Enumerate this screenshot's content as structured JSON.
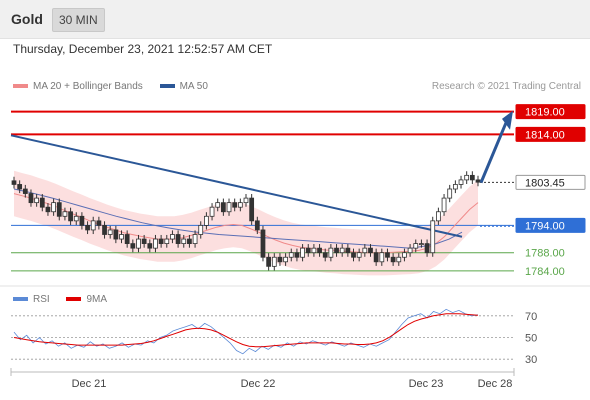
{
  "header": {
    "title": "Gold",
    "timeframe": "30 MIN"
  },
  "timestamp": "Thursday, December 23, 2021 12:52:57 AM CET",
  "copyright": "Research © 2021 Trading Central",
  "colors": {
    "resistance": "#e00000",
    "pivot": "#2f6fd6",
    "support": "#5aa64a",
    "trend": "#2b5797",
    "bollinger_fill": "#fcd9d9",
    "ma20": "#f08a8a",
    "ma50": "#5b6fb5",
    "candle_up": "#2e7d32",
    "candle_down": "#c62828",
    "rsi": "#5b8ad6",
    "rsi_ma": "#e00000"
  },
  "chart_data": [
    {
      "type": "candlestick",
      "name": "price",
      "legend": [
        {
          "label": "MA 20 + Bollinger Bands",
          "color": "#f08a8a"
        },
        {
          "label": "MA 50",
          "color": "#2b5797"
        }
      ],
      "ylim": [
        1782,
        1822
      ],
      "x_ticks": [
        "Dec 21",
        "Dec 22",
        "Dec 23",
        "Dec 28"
      ],
      "current_price": "1803.45",
      "levels": [
        {
          "label": "1819.00",
          "value": 1819.0,
          "kind": "resistance"
        },
        {
          "label": "1814.00",
          "value": 1814.0,
          "kind": "resistance"
        },
        {
          "label": "1803.45",
          "value": 1803.45,
          "kind": "last"
        },
        {
          "label": "1794.00",
          "value": 1794.0,
          "kind": "pivot"
        },
        {
          "label": "1788.00",
          "value": 1788.0,
          "kind": "support"
        },
        {
          "label": "1784.00",
          "value": 1784.0,
          "kind": "support"
        }
      ],
      "close_series": [
        1803,
        1802,
        1801,
        1799,
        1800,
        1798,
        1797,
        1799,
        1796,
        1797,
        1795,
        1796,
        1794,
        1793,
        1795,
        1794,
        1792,
        1793,
        1791,
        1792,
        1790,
        1789,
        1791,
        1790,
        1789,
        1791,
        1790,
        1791,
        1792,
        1790,
        1791,
        1790,
        1792,
        1794,
        1796,
        1798,
        1799,
        1797,
        1799,
        1798,
        1799,
        1800,
        1795,
        1793,
        1787,
        1785,
        1787,
        1786,
        1787,
        1788,
        1787,
        1789,
        1788,
        1789,
        1788,
        1787,
        1789,
        1788,
        1789,
        1788,
        1787,
        1788,
        1789,
        1788,
        1786,
        1788,
        1787,
        1786,
        1787,
        1788,
        1789,
        1790,
        1790,
        1788,
        1795,
        1797,
        1800,
        1802,
        1803,
        1804,
        1805,
        1804,
        1803.5
      ],
      "ma20": [
        1801,
        1800.5,
        1800,
        1799.4,
        1798.8,
        1798.1,
        1797.3,
        1796.5,
        1795.8,
        1795,
        1794.3,
        1793.6,
        1793,
        1792.4,
        1792,
        1791.6,
        1791.3,
        1791,
        1791,
        1791,
        1791.3,
        1791.8,
        1792.4,
        1793,
        1793.6,
        1794,
        1794.2,
        1794,
        1793.3,
        1792.5,
        1791.6,
        1790.8,
        1790.1,
        1789.6,
        1789.2,
        1789,
        1788.8,
        1788.6,
        1788.5,
        1788.3,
        1788.2,
        1788.1,
        1788,
        1788,
        1788,
        1788.1,
        1788.2,
        1788.3,
        1788.5,
        1789,
        1790,
        1791.5,
        1793.5,
        1795.5,
        1797.5,
        1799
      ],
      "ma50": [
        1802,
        1801.4,
        1800.7,
        1800,
        1799.2,
        1798.4,
        1797.6,
        1796.8,
        1796,
        1795.3,
        1794.6,
        1794,
        1793.5,
        1793,
        1792.6,
        1792.3,
        1792,
        1791.8,
        1791.6,
        1791.4,
        1791.2,
        1791,
        1790.8,
        1790.6,
        1790.4,
        1790.2,
        1790,
        1789.8,
        1789.6,
        1789.4,
        1789.2,
        1789,
        1789.4,
        1790,
        1791,
        1792.5
      ]
    },
    {
      "type": "line",
      "name": "RSI",
      "legend": [
        {
          "label": "RSI",
          "color": "#5b8ad6"
        },
        {
          "label": "9MA",
          "color": "#e00000"
        }
      ],
      "ylim": [
        20,
        80
      ],
      "y_ticks": [
        "70",
        "50",
        "30"
      ],
      "reference_levels": [
        70,
        50,
        30
      ],
      "series": [
        {
          "name": "RSI",
          "values": [
            55,
            48,
            52,
            45,
            50,
            44,
            47,
            42,
            45,
            40,
            43,
            41,
            46,
            42,
            44,
            40,
            42,
            45,
            41,
            44,
            43,
            47,
            45,
            50,
            52,
            56,
            58,
            60,
            62,
            58,
            63,
            60,
            55,
            50,
            45,
            38,
            35,
            40,
            37,
            42,
            39,
            43,
            41,
            45,
            42,
            46,
            44,
            47,
            45,
            43,
            46,
            44,
            42,
            45,
            43,
            41,
            44,
            42,
            45,
            48,
            55,
            62,
            68,
            70,
            72,
            68,
            74,
            72,
            76,
            73,
            75,
            72,
            70,
            71
          ]
        },
        {
          "name": "9MA",
          "values": [
            50,
            49,
            48,
            47,
            46,
            45.5,
            45,
            44.5,
            44,
            43.5,
            43,
            43,
            43,
            43,
            43,
            43,
            43,
            43,
            43.5,
            44,
            44.5,
            45.5,
            47,
            49,
            51,
            53,
            55,
            57,
            58,
            58.5,
            58,
            57,
            55,
            52,
            49,
            46,
            43.5,
            42,
            41.5,
            41.5,
            42,
            42.5,
            43,
            43.5,
            44,
            44.5,
            45,
            45,
            45,
            45,
            45,
            44.5,
            44,
            44,
            43.5,
            43.5,
            44,
            45,
            47,
            50,
            54,
            58,
            62,
            65,
            67,
            68.5,
            70,
            71,
            72,
            72,
            72,
            71.5,
            71,
            70.5
          ]
        }
      ]
    }
  ]
}
